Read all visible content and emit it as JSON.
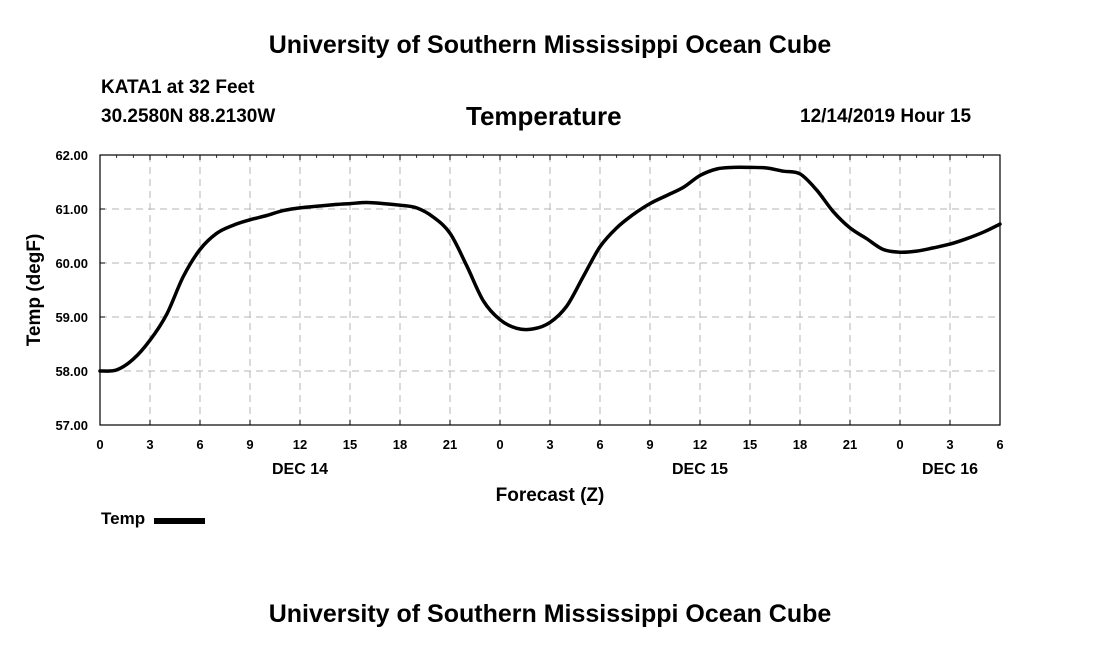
{
  "page": {
    "title_top": "University of Southern Mississippi Ocean Cube",
    "title_bottom": "University of Southern Mississippi Ocean Cube",
    "station": "KATA1 at 32 Feet",
    "coords": "30.2580N 88.2130W",
    "parameter": "Temperature",
    "timestamp": "12/14/2019 Hour 15"
  },
  "chart_data": {
    "type": "line",
    "title": "Temperature",
    "xlabel": "Forecast (Z)",
    "ylabel": "Temp (degF)",
    "xlim": [
      0,
      54
    ],
    "ylim": [
      57,
      62
    ],
    "grid": true,
    "legend_placement": "bottom-left",
    "x_ticks": [
      0,
      3,
      6,
      9,
      12,
      15,
      18,
      21,
      24,
      27,
      30,
      33,
      36,
      39,
      42,
      45,
      48,
      51,
      54
    ],
    "x_tick_labels": [
      "0",
      "3",
      "6",
      "9",
      "12",
      "15",
      "18",
      "21",
      "0",
      "3",
      "6",
      "9",
      "12",
      "15",
      "18",
      "21",
      "0",
      "3",
      "6"
    ],
    "y_ticks": [
      57,
      58,
      59,
      60,
      61,
      62
    ],
    "y_tick_labels": [
      "57.00",
      "58.00",
      "59.00",
      "60.00",
      "61.00",
      "62.00"
    ],
    "date_labels": [
      {
        "x": 12,
        "label": "DEC 14"
      },
      {
        "x": 36,
        "label": "DEC 15"
      },
      {
        "x": 51,
        "label": "DEC 16"
      }
    ],
    "series": [
      {
        "name": "Temp",
        "color": "#000000",
        "x": [
          0,
          1,
          2,
          3,
          4,
          5,
          6,
          7,
          8,
          9,
          10,
          11,
          12,
          13,
          14,
          15,
          16,
          17,
          18,
          19,
          20,
          21,
          22,
          23,
          24,
          25,
          26,
          27,
          28,
          29,
          30,
          31,
          32,
          33,
          34,
          35,
          36,
          37,
          38,
          39,
          40,
          41,
          42,
          43,
          44,
          45,
          46,
          47,
          48,
          49,
          50,
          51,
          52,
          53,
          54
        ],
        "values": [
          58.0,
          58.02,
          58.22,
          58.57,
          59.05,
          59.75,
          60.25,
          60.55,
          60.7,
          60.8,
          60.88,
          60.97,
          61.02,
          61.05,
          61.08,
          61.1,
          61.12,
          61.1,
          61.07,
          61.02,
          60.85,
          60.55,
          59.95,
          59.3,
          58.95,
          58.79,
          58.78,
          58.9,
          59.2,
          59.75,
          60.3,
          60.65,
          60.9,
          61.1,
          61.25,
          61.4,
          61.62,
          61.74,
          61.77,
          61.77,
          61.76,
          61.7,
          61.65,
          61.35,
          60.95,
          60.65,
          60.45,
          60.25,
          60.2,
          60.22,
          60.28,
          60.35,
          60.45,
          60.57,
          60.72
        ]
      }
    ]
  }
}
